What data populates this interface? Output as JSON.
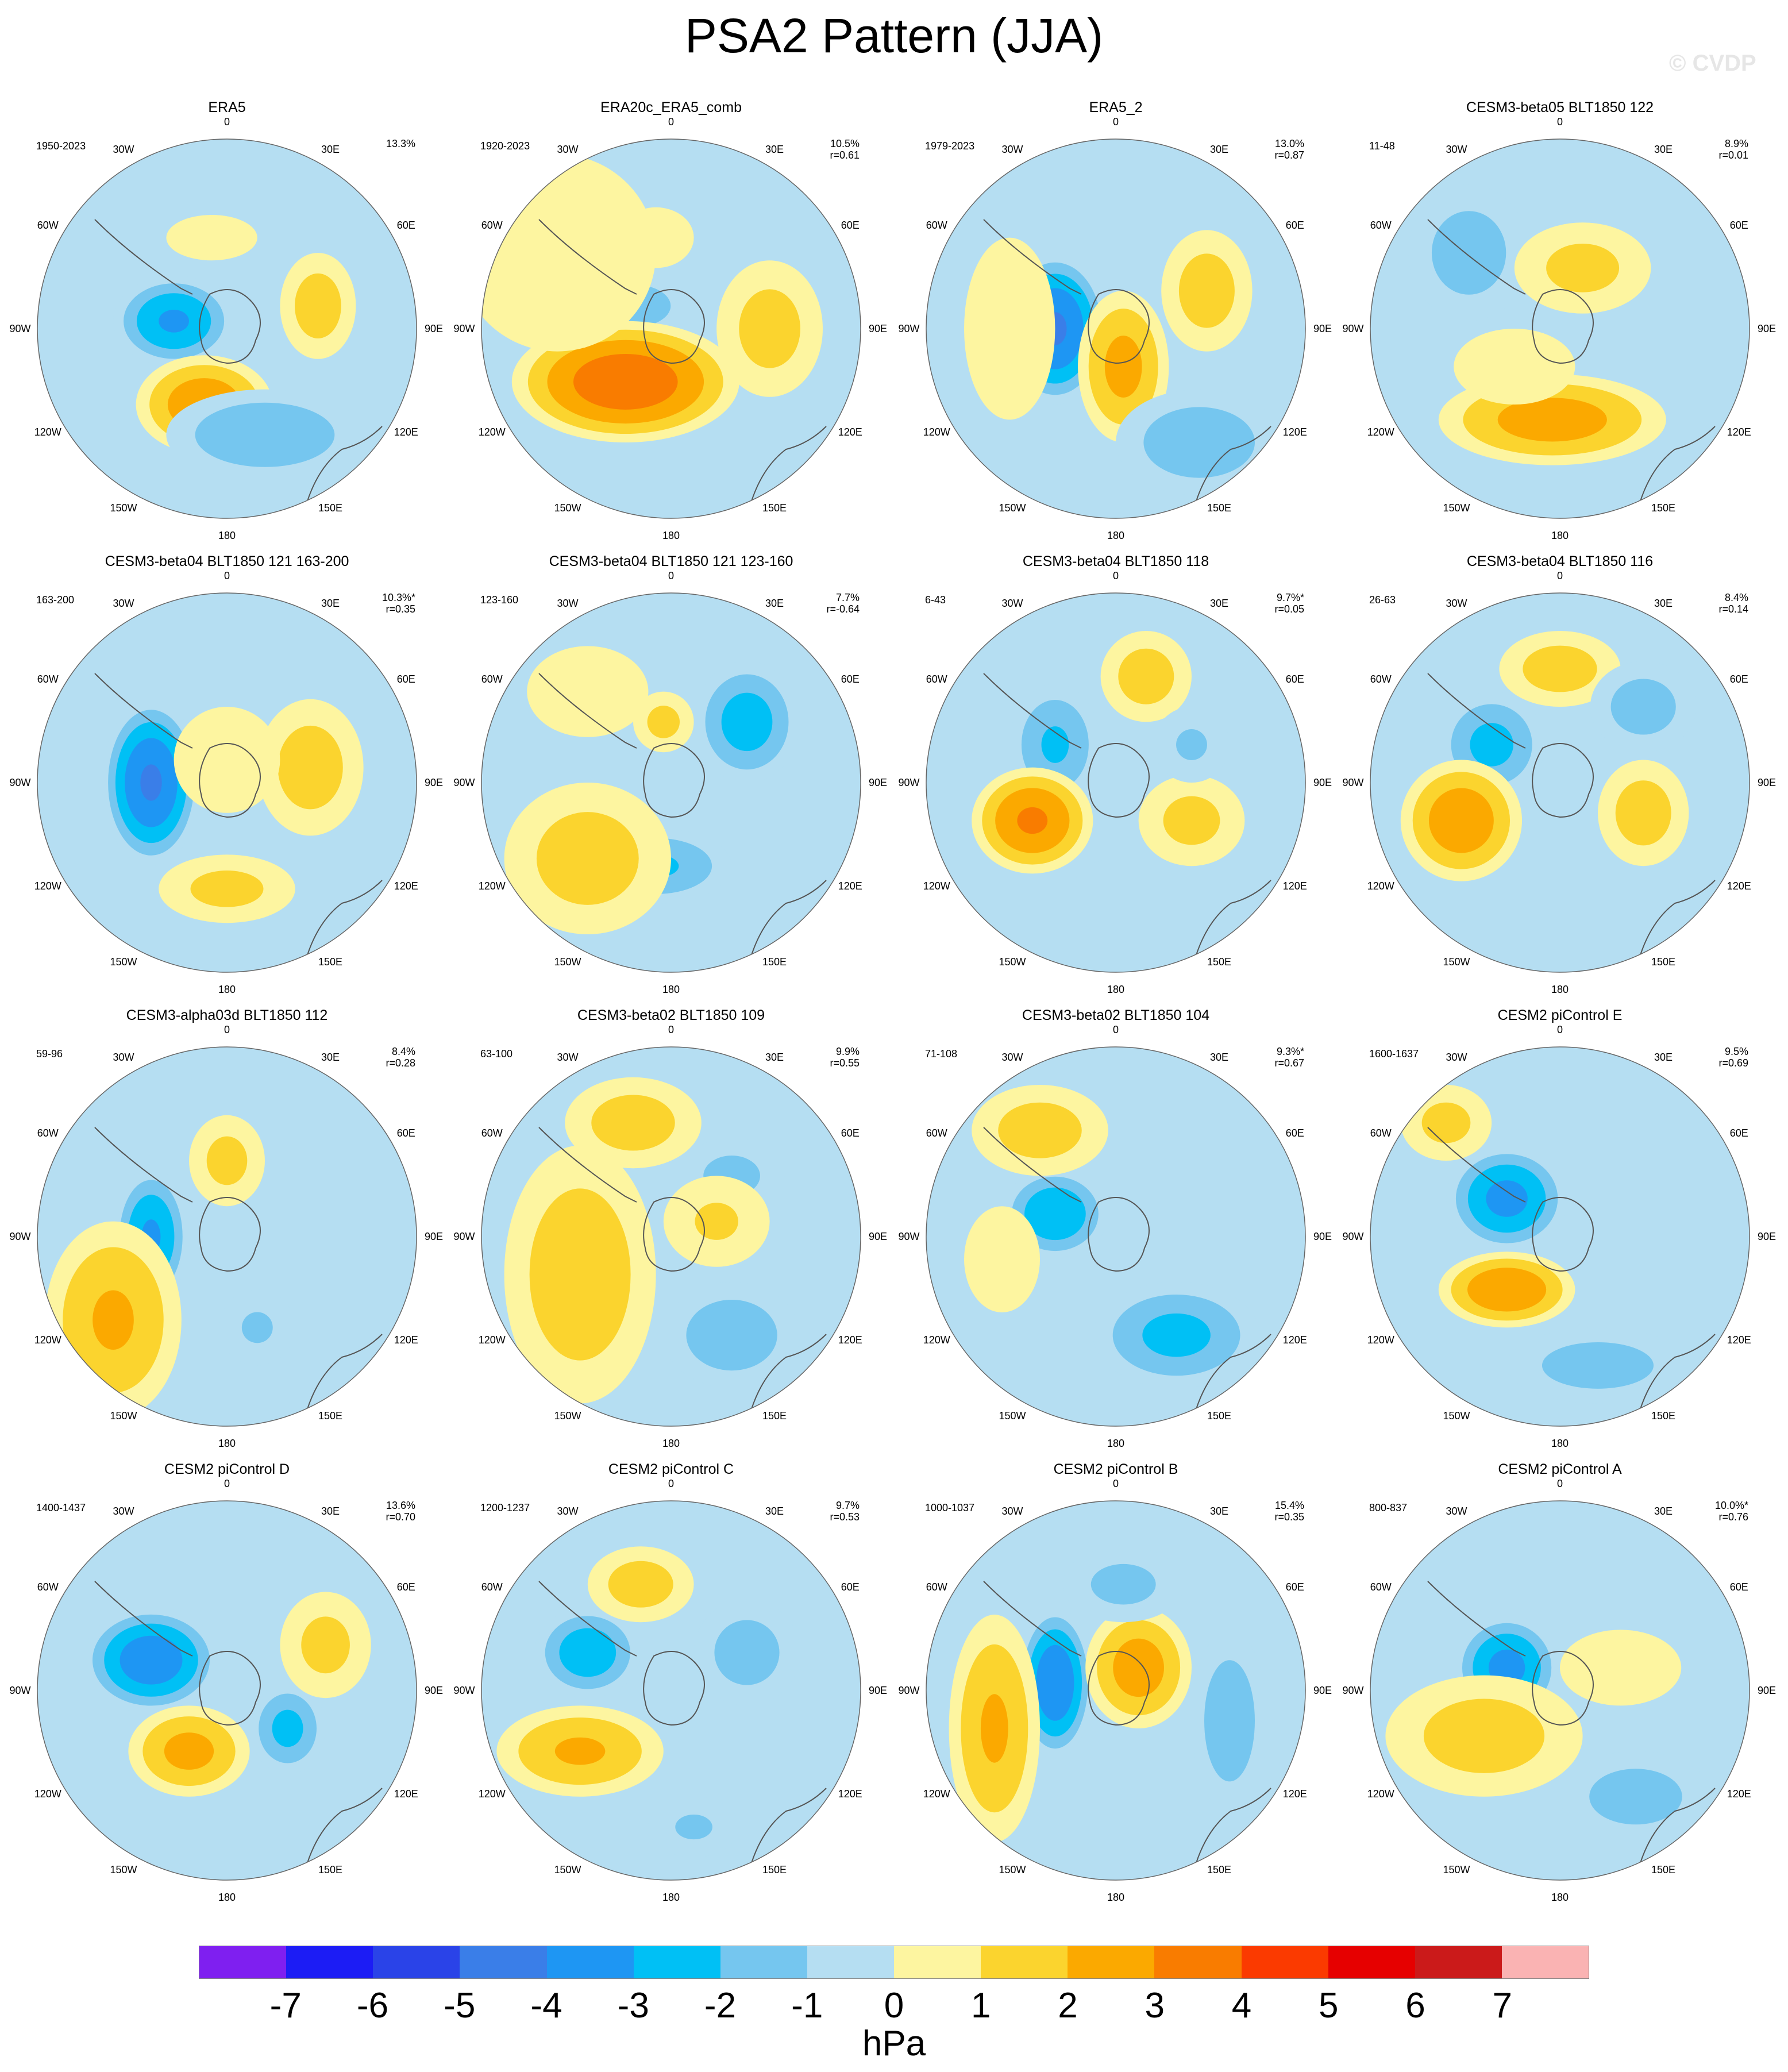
{
  "title": "PSA2 Pattern (JJA)",
  "watermark": "© CVDP",
  "lon_labels": {
    "n": "0",
    "ne30": "30E",
    "ne60": "60E",
    "e": "90E",
    "se120": "120E",
    "se150": "150E",
    "s": "180",
    "sw150": "150W",
    "sw120": "120W",
    "w": "90W",
    "nw60": "60W",
    "nw30": "30W"
  },
  "colors": {
    "ocean": "#b5def2",
    "land_line": "#555555",
    "zero_fill": "#fdf5a0",
    "scale": [
      "#7f1ff0",
      "#1c1cf5",
      "#2a43e8",
      "#3a7ee8",
      "#1e96f3",
      "#00c0f5",
      "#75c6ef",
      "#b5def2",
      "#fdf5a0",
      "#fbd42e",
      "#fba900",
      "#f97c00",
      "#fb3a00",
      "#e60000",
      "#cb1a1a",
      "#fab3b3"
    ]
  },
  "colorbar": {
    "ticks": [
      "-7",
      "-6",
      "-5",
      "-4",
      "-3",
      "-2",
      "-1",
      "0",
      "1",
      "2",
      "3",
      "4",
      "5",
      "6",
      "7"
    ],
    "unit": "hPa"
  },
  "panels": [
    {
      "name": "ERA5",
      "years": "1950-2023",
      "pct": "13.3%",
      "r": ""
    },
    {
      "name": "ERA20c_ERA5_comb",
      "years": "1920-2023",
      "pct": "10.5%",
      "r": "r=0.61"
    },
    {
      "name": "ERA5_2",
      "years": "1979-2023",
      "pct": "13.0%",
      "r": "r=0.87"
    },
    {
      "name": "CESM3-beta05 BLT1850 122",
      "years": "11-48",
      "pct": "8.9%",
      "r": "r=0.01"
    },
    {
      "name": "CESM3-beta04 BLT1850 121 163-200",
      "years": "163-200",
      "pct": "10.3%*",
      "r": "r=0.35"
    },
    {
      "name": "CESM3-beta04 BLT1850 121 123-160",
      "years": "123-160",
      "pct": "7.7%",
      "r": "r=-0.64"
    },
    {
      "name": "CESM3-beta04 BLT1850 118",
      "years": "6-43",
      "pct": "9.7%*",
      "r": "r=0.05"
    },
    {
      "name": "CESM3-beta04 BLT1850 116",
      "years": "26-63",
      "pct": "8.4%",
      "r": "r=0.14"
    },
    {
      "name": "CESM3-alpha03d BLT1850 112",
      "years": "59-96",
      "pct": "8.4%",
      "r": "r=0.28"
    },
    {
      "name": "CESM3-beta02 BLT1850 109",
      "years": "63-100",
      "pct": "9.9%",
      "r": "r=0.55"
    },
    {
      "name": "CESM3-beta02 BLT1850 104",
      "years": "71-108",
      "pct": "9.3%*",
      "r": "r=0.67"
    },
    {
      "name": "CESM2 piControl E",
      "years": "1600-1637",
      "pct": "9.5%",
      "r": "r=0.69"
    },
    {
      "name": "CESM2 piControl D",
      "years": "1400-1437",
      "pct": "13.6%",
      "r": "r=0.70"
    },
    {
      "name": "CESM2 piControl C",
      "years": "1200-1237",
      "pct": "9.7%",
      "r": "r=0.53"
    },
    {
      "name": "CESM2 piControl B",
      "years": "1000-1037",
      "pct": "15.4%",
      "r": "r=0.35"
    },
    {
      "name": "CESM2 piControl A",
      "years": "800-837",
      "pct": "10.0%*",
      "r": "r=0.76"
    }
  ],
  "anomalies": [
    [
      [
        0.36,
        0.48,
        -3.2,
        0.16,
        0.12
      ],
      [
        0.44,
        0.7,
        2.8,
        0.18,
        0.13
      ],
      [
        0.6,
        0.78,
        -2.0,
        0.26,
        0.12
      ],
      [
        0.74,
        0.44,
        1.6,
        0.1,
        0.14
      ],
      [
        0.46,
        0.26,
        1.0,
        0.12,
        0.06
      ],
      [
        0.22,
        0.26,
        0.0,
        0.3,
        0.2
      ]
    ],
    [
      [
        0.4,
        0.44,
        -2.0,
        0.14,
        0.08
      ],
      [
        0.38,
        0.64,
        3.8,
        0.3,
        0.16
      ],
      [
        0.76,
        0.5,
        1.5,
        0.14,
        0.18
      ],
      [
        0.46,
        0.26,
        0.8,
        0.1,
        0.08
      ],
      [
        0.2,
        0.3,
        0.8,
        0.26,
        0.26
      ]
    ],
    [
      [
        0.34,
        0.5,
        -4.2,
        0.14,
        0.2
      ],
      [
        0.52,
        0.6,
        2.4,
        0.12,
        0.2
      ],
      [
        0.74,
        0.4,
        1.6,
        0.12,
        0.16
      ],
      [
        0.72,
        0.8,
        -1.8,
        0.22,
        0.14
      ],
      [
        0.22,
        0.5,
        0.8,
        0.12,
        0.24
      ]
    ],
    [
      [
        0.26,
        0.3,
        -1.6,
        0.16,
        0.18
      ],
      [
        0.48,
        0.74,
        2.6,
        0.3,
        0.12
      ],
      [
        0.56,
        0.34,
        1.4,
        0.18,
        0.12
      ],
      [
        0.38,
        0.6,
        0.8,
        0.16,
        0.1
      ]
    ],
    [
      [
        0.3,
        0.5,
        -4.2,
        0.13,
        0.22
      ],
      [
        0.5,
        0.78,
        1.4,
        0.18,
        0.09
      ],
      [
        0.72,
        0.46,
        1.6,
        0.14,
        0.18
      ],
      [
        0.5,
        0.44,
        0.8,
        0.14,
        0.14
      ]
    ],
    [
      [
        0.7,
        0.34,
        -2.6,
        0.14,
        0.16
      ],
      [
        0.46,
        0.72,
        -2.2,
        0.2,
        0.1
      ],
      [
        0.28,
        0.7,
        1.6,
        0.22,
        0.2
      ],
      [
        0.48,
        0.34,
        1.4,
        0.08,
        0.08
      ],
      [
        0.28,
        0.26,
        0.8,
        0.16,
        0.12
      ]
    ],
    [
      [
        0.34,
        0.4,
        -2.2,
        0.12,
        0.16
      ],
      [
        0.28,
        0.6,
        3.2,
        0.16,
        0.14
      ],
      [
        0.58,
        0.22,
        1.6,
        0.12,
        0.12
      ],
      [
        0.7,
        0.6,
        1.4,
        0.14,
        0.12
      ],
      [
        0.7,
        0.4,
        -1.2,
        0.1,
        0.1
      ],
      [
        0.5,
        0.8,
        -1.0,
        0.12,
        0.1
      ]
    ],
    [
      [
        0.32,
        0.4,
        -2.4,
        0.14,
        0.14
      ],
      [
        0.24,
        0.6,
        2.8,
        0.16,
        0.16
      ],
      [
        0.5,
        0.2,
        1.6,
        0.16,
        0.1
      ],
      [
        0.72,
        0.3,
        -1.6,
        0.14,
        0.12
      ],
      [
        0.72,
        0.58,
        1.6,
        0.12,
        0.14
      ]
    ],
    [
      [
        0.3,
        0.5,
        -3.2,
        0.1,
        0.18
      ],
      [
        0.2,
        0.72,
        2.2,
        0.18,
        0.26
      ],
      [
        0.5,
        0.3,
        1.4,
        0.1,
        0.12
      ],
      [
        0.58,
        0.74,
        -1.2,
        0.1,
        0.1
      ]
    ],
    [
      [
        0.32,
        0.5,
        -3.6,
        0.12,
        0.14
      ],
      [
        0.26,
        0.6,
        1.8,
        0.2,
        0.34
      ],
      [
        0.4,
        0.2,
        1.6,
        0.18,
        0.12
      ],
      [
        0.66,
        0.34,
        -1.4,
        0.14,
        0.1
      ],
      [
        0.66,
        0.76,
        -1.8,
        0.18,
        0.14
      ],
      [
        0.62,
        0.46,
        1.2,
        0.14,
        0.12
      ]
    ],
    [
      [
        0.34,
        0.44,
        -3.0,
        0.14,
        0.12
      ],
      [
        0.3,
        0.22,
        1.6,
        0.18,
        0.12
      ],
      [
        0.66,
        0.76,
        -2.4,
        0.22,
        0.14
      ],
      [
        0.2,
        0.56,
        0.8,
        0.1,
        0.14
      ]
    ],
    [
      [
        0.36,
        0.4,
        -3.4,
        0.16,
        0.14
      ],
      [
        0.36,
        0.64,
        3.0,
        0.18,
        0.1
      ],
      [
        0.6,
        0.84,
        -1.6,
        0.24,
        0.1
      ],
      [
        0.2,
        0.2,
        1.4,
        0.12,
        0.1
      ]
    ],
    [
      [
        0.3,
        0.42,
        -3.8,
        0.18,
        0.14
      ],
      [
        0.4,
        0.66,
        2.4,
        0.16,
        0.12
      ],
      [
        0.66,
        0.6,
        -2.4,
        0.1,
        0.12
      ],
      [
        0.76,
        0.38,
        1.4,
        0.12,
        0.14
      ]
    ],
    [
      [
        0.28,
        0.4,
        -2.8,
        0.14,
        0.12
      ],
      [
        0.26,
        0.66,
        2.2,
        0.22,
        0.12
      ],
      [
        0.42,
        0.22,
        1.6,
        0.14,
        0.1
      ],
      [
        0.7,
        0.4,
        -1.6,
        0.14,
        0.14
      ],
      [
        0.56,
        0.86,
        -1.2,
        0.12,
        0.08
      ]
    ],
    [
      [
        0.34,
        0.48,
        -4.0,
        0.1,
        0.2
      ],
      [
        0.18,
        0.6,
        2.2,
        0.12,
        0.3
      ],
      [
        0.56,
        0.44,
        2.6,
        0.14,
        0.16
      ],
      [
        0.8,
        0.58,
        -1.8,
        0.1,
        0.24
      ],
      [
        0.52,
        0.22,
        -1.4,
        0.16,
        0.1
      ]
    ],
    [
      [
        0.36,
        0.44,
        -3.4,
        0.14,
        0.14
      ],
      [
        0.3,
        0.62,
        1.6,
        0.26,
        0.16
      ],
      [
        0.7,
        0.78,
        -1.6,
        0.2,
        0.12
      ],
      [
        0.66,
        0.44,
        0.8,
        0.16,
        0.1
      ]
    ]
  ]
}
